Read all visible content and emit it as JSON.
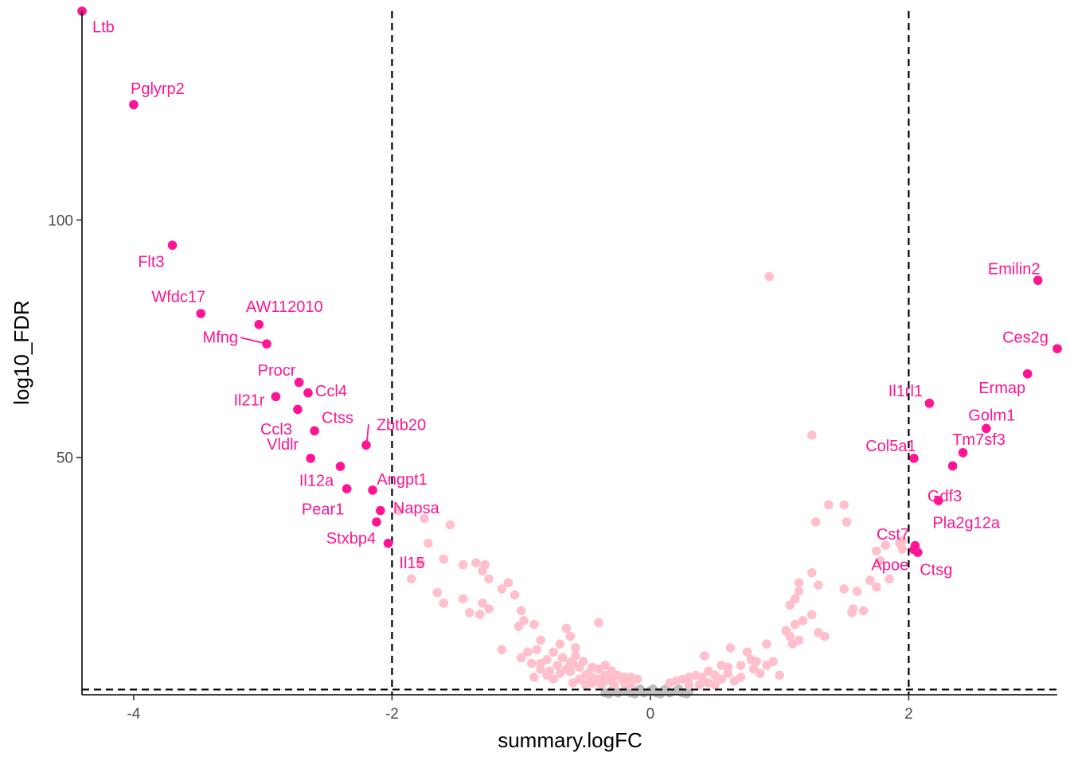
{
  "chart_data": {
    "type": "scatter",
    "title": "",
    "xlabel": "summary.logFC",
    "ylabel": "log10_FDR",
    "xlim": [
      -4.4,
      3.15
    ],
    "ylim": [
      0,
      144
    ],
    "x_ticks": [
      -4,
      -2,
      0,
      2
    ],
    "x_tick_labels": [
      "-4",
      "-2",
      "0",
      "2"
    ],
    "y_ticks": [
      50,
      100
    ],
    "y_tick_labels": [
      "50",
      "100"
    ],
    "grid": false,
    "legend": "none",
    "thresholds": {
      "logFC": [
        -2,
        2
      ],
      "log10_FDR": 1.1
    },
    "colors": {
      "significant": "#ff1493",
      "moderate": "#ffc0cb",
      "nonsignificant": "#bebebe",
      "threshold_line": "#000000"
    },
    "significant_genes": [
      {
        "gene": "Ltb",
        "x": -4.4,
        "y": 144.0
      },
      {
        "gene": "Pglyrp2",
        "x": -4.0,
        "y": 124.3
      },
      {
        "gene": "Flt3",
        "x": -3.7,
        "y": 94.7
      },
      {
        "gene": "Wfdc17",
        "x": -3.48,
        "y": 80.3
      },
      {
        "gene": "AW112010",
        "x": -3.03,
        "y": 78.0
      },
      {
        "gene": "Mfng",
        "x": -2.97,
        "y": 73.9
      },
      {
        "gene": "Procr",
        "x": -2.72,
        "y": 65.8
      },
      {
        "gene": "Ccl4",
        "x": -2.65,
        "y": 63.6
      },
      {
        "gene": "Il21r",
        "x": -2.9,
        "y": 62.8
      },
      {
        "gene": "Ccl3",
        "x": -2.73,
        "y": 60.1
      },
      {
        "gene": "Ctss",
        "x": -2.6,
        "y": 55.6
      },
      {
        "gene": "Zbtb20",
        "x": -2.2,
        "y": 52.6
      },
      {
        "gene": "Vldlr",
        "x": -2.63,
        "y": 49.8
      },
      {
        "gene": "Il12a",
        "x": -2.4,
        "y": 48.1
      },
      {
        "gene": "Pear1",
        "x": -2.35,
        "y": 43.4
      },
      {
        "gene": "Angpt1",
        "x": -2.15,
        "y": 43.1
      },
      {
        "gene": "Napsa",
        "x": -2.09,
        "y": 38.8
      },
      {
        "gene": "Stxbp4",
        "x": -2.12,
        "y": 36.4
      },
      {
        "gene": "Il15",
        "x": -2.03,
        "y": 31.9
      },
      {
        "gene": "Emilin2",
        "x": 3.0,
        "y": 87.3
      },
      {
        "gene": "Ces2g",
        "x": 3.15,
        "y": 72.9
      },
      {
        "gene": "Ermap",
        "x": 2.92,
        "y": 67.6
      },
      {
        "gene": "Il1rl1",
        "x": 2.16,
        "y": 61.4
      },
      {
        "gene": "Golm1",
        "x": 2.6,
        "y": 56.1
      },
      {
        "gene": "Tm7sf3",
        "x": 2.42,
        "y": 51.0
      },
      {
        "gene": "Col5a1",
        "x": 2.04,
        "y": 49.8
      },
      {
        "gene": "Gdf3",
        "x": 2.34,
        "y": 48.2
      },
      {
        "gene": "Pla2g12a",
        "x": 2.23,
        "y": 40.9
      },
      {
        "gene": "Cst7",
        "x": 2.05,
        "y": 31.4
      },
      {
        "gene": "Ctsg",
        "x": 2.07,
        "y": 30.0
      },
      {
        "gene": "Apoe",
        "x": 2.04,
        "y": 30.6
      }
    ],
    "moderate_points": [
      [
        -1.95,
        38.8
      ],
      [
        -1.75,
        37.1
      ],
      [
        -1.55,
        35.8
      ],
      [
        -1.72,
        31.9
      ],
      [
        -1.78,
        27.8
      ],
      [
        -1.6,
        28.6
      ],
      [
        -1.45,
        27.4
      ],
      [
        -1.35,
        27.8
      ],
      [
        -1.28,
        27.4
      ],
      [
        -1.3,
        26.1
      ],
      [
        -1.25,
        24.4
      ],
      [
        -1.15,
        22.3
      ],
      [
        -1.05,
        21.0
      ],
      [
        -1.1,
        23.6
      ],
      [
        -1.85,
        24.4
      ],
      [
        -1.65,
        21.5
      ],
      [
        -1.6,
        19.3
      ],
      [
        -1.45,
        20.2
      ],
      [
        -1.4,
        17.3
      ],
      [
        -1.3,
        19.3
      ],
      [
        -1.25,
        18.1
      ],
      [
        -1.32,
        16.9
      ],
      [
        -1.0,
        17.7
      ],
      [
        -0.98,
        15.6
      ],
      [
        -1.02,
        14.4
      ],
      [
        -0.9,
        14.8
      ],
      [
        -0.85,
        11.5
      ],
      [
        -0.65,
        14.0
      ],
      [
        -0.4,
        15.2
      ],
      [
        -0.62,
        12.3
      ],
      [
        -0.58,
        9.9
      ],
      [
        -0.7,
        10.7
      ],
      [
        -0.75,
        9.0
      ],
      [
        -0.88,
        9.5
      ],
      [
        -0.95,
        9.0
      ],
      [
        -1.15,
        9.5
      ],
      [
        -1.0,
        7.8
      ],
      [
        -0.92,
        6.6
      ],
      [
        -0.85,
        6.6
      ],
      [
        -0.8,
        7.4
      ],
      [
        -0.72,
        6.2
      ],
      [
        -0.6,
        6.6
      ],
      [
        -0.55,
        5.8
      ],
      [
        -0.52,
        7.0
      ],
      [
        -0.45,
        5.8
      ],
      [
        -0.4,
        5.4
      ],
      [
        -0.35,
        6.2
      ],
      [
        -0.3,
        5.0
      ],
      [
        -0.25,
        4.1
      ],
      [
        -0.2,
        3.7
      ],
      [
        -0.15,
        3.7
      ],
      [
        -0.1,
        3.3
      ],
      [
        -0.62,
        4.9
      ],
      [
        -0.65,
        5.4
      ],
      [
        -0.7,
        4.5
      ],
      [
        -0.5,
        4.1
      ],
      [
        -0.45,
        3.7
      ],
      [
        -0.4,
        3.3
      ],
      [
        -0.35,
        2.9
      ],
      [
        -0.3,
        2.9
      ],
      [
        -0.55,
        3.3
      ],
      [
        -0.8,
        4.1
      ],
      [
        -0.75,
        3.3
      ],
      [
        -0.6,
        2.5
      ],
      [
        -0.5,
        2.1
      ],
      [
        -0.45,
        2.5
      ],
      [
        -0.38,
        2.1
      ],
      [
        -0.28,
        2.1
      ],
      [
        -0.2,
        2.5
      ],
      [
        -0.15,
        2.1
      ],
      [
        -0.78,
        5.0
      ],
      [
        -0.85,
        5.4
      ],
      [
        -0.9,
        3.7
      ],
      [
        -0.68,
        7.8
      ],
      [
        -0.58,
        8.2
      ],
      [
        -0.62,
        6.8
      ],
      [
        -0.48,
        4.5
      ],
      [
        -0.35,
        4.1
      ],
      [
        -0.3,
        3.7
      ],
      [
        -0.22,
        3.3
      ],
      [
        0.92,
        88.1
      ],
      [
        1.25,
        54.7
      ],
      [
        1.38,
        40.0
      ],
      [
        1.5,
        40.0
      ],
      [
        1.28,
        36.4
      ],
      [
        1.52,
        36.4
      ],
      [
        1.25,
        25.7
      ],
      [
        1.15,
        23.6
      ],
      [
        1.3,
        23.1
      ],
      [
        1.15,
        21.8
      ],
      [
        1.5,
        22.3
      ],
      [
        1.12,
        20.2
      ],
      [
        1.08,
        18.9
      ],
      [
        1.75,
        22.7
      ],
      [
        1.6,
        21.8
      ],
      [
        1.78,
        28.2
      ],
      [
        1.7,
        24.1
      ],
      [
        1.85,
        24.4
      ],
      [
        1.82,
        31.5
      ],
      [
        1.75,
        30.3
      ],
      [
        1.95,
        32.4
      ],
      [
        1.93,
        31.9
      ],
      [
        1.95,
        30.7
      ],
      [
        1.65,
        17.7
      ],
      [
        1.57,
        18.1
      ],
      [
        1.56,
        17.3
      ],
      [
        1.35,
        12.3
      ],
      [
        1.3,
        13.1
      ],
      [
        1.12,
        14.8
      ],
      [
        1.18,
        15.6
      ],
      [
        1.25,
        16.9
      ],
      [
        1.05,
        13.5
      ],
      [
        1.15,
        11.5
      ],
      [
        1.08,
        12.3
      ],
      [
        1.1,
        10.7
      ],
      [
        0.62,
        9.9
      ],
      [
        0.9,
        10.7
      ],
      [
        0.75,
        9.0
      ],
      [
        0.78,
        7.4
      ],
      [
        0.82,
        7.0
      ],
      [
        0.9,
        6.2
      ],
      [
        0.95,
        7.0
      ],
      [
        0.7,
        6.2
      ],
      [
        0.42,
        8.2
      ],
      [
        0.55,
        6.2
      ],
      [
        0.6,
        4.5
      ],
      [
        0.5,
        4.1
      ],
      [
        0.45,
        5.0
      ],
      [
        0.35,
        4.1
      ],
      [
        0.3,
        3.7
      ],
      [
        0.25,
        3.3
      ],
      [
        0.2,
        2.9
      ],
      [
        0.15,
        2.5
      ],
      [
        0.4,
        3.7
      ],
      [
        0.55,
        3.3
      ],
      [
        0.65,
        2.9
      ],
      [
        0.7,
        3.7
      ],
      [
        0.85,
        4.5
      ],
      [
        1.0,
        4.1
      ],
      [
        0.5,
        2.1
      ],
      [
        0.45,
        2.5
      ],
      [
        0.38,
        2.1
      ],
      [
        0.3,
        2.1
      ],
      [
        0.6,
        5.8
      ],
      [
        0.8,
        5.4
      ]
    ],
    "nonsignificant_points": [
      [
        -0.35,
        0.4
      ],
      [
        -0.3,
        0.8
      ],
      [
        -0.25,
        0.4
      ],
      [
        -0.2,
        0.8
      ],
      [
        -0.15,
        0.4
      ],
      [
        -0.1,
        0.8
      ],
      [
        -0.05,
        0.4
      ],
      [
        0.0,
        0.8
      ],
      [
        0.05,
        0.4
      ],
      [
        0.1,
        0.8
      ],
      [
        0.15,
        0.4
      ],
      [
        0.2,
        0.8
      ],
      [
        0.25,
        0.4
      ],
      [
        0.3,
        0.8
      ],
      [
        -0.28,
        1.2
      ],
      [
        -0.18,
        1.2
      ],
      [
        -0.08,
        1.2
      ],
      [
        0.02,
        1.2
      ],
      [
        0.12,
        1.2
      ],
      [
        0.22,
        1.2
      ],
      [
        -0.32,
        0.2
      ],
      [
        -0.12,
        0.2
      ],
      [
        0.08,
        0.2
      ],
      [
        0.28,
        0.2
      ]
    ]
  }
}
